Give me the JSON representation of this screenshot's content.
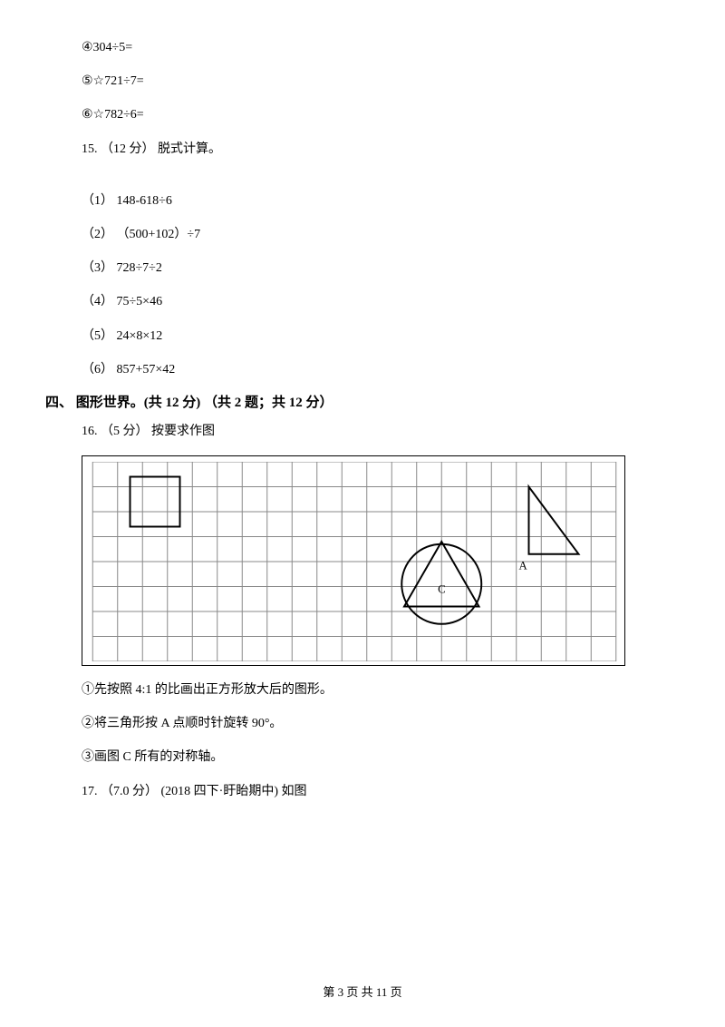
{
  "q14": {
    "items": [
      "④304÷5=",
      "⑤☆721÷7=",
      "⑥☆782÷6="
    ]
  },
  "q15": {
    "header": "15. （12 分） 脱式计算。",
    "items": [
      "（1） 148-618÷6",
      "（2） （500+102）÷7",
      "（3） 728÷7÷2",
      "（4） 75÷5×46",
      "（5） 24×8×12",
      "（6） 857+57×42"
    ]
  },
  "section4": {
    "title": "四、 图形世界。(共 12 分) （共 2 题；共 12 分）"
  },
  "q16": {
    "header": "16. （5 分） 按要求作图",
    "notes": [
      "①先按照 4:1 的比画出正方形放大后的图形。",
      "②将三角形按 A 点顺时针旋转 90°。",
      "③画图 C 所有的对称轴。"
    ]
  },
  "q17": {
    "header": "17. （7.0 分） (2018 四下·盱眙期中) 如图"
  },
  "figure": {
    "grid": {
      "cols": 21,
      "rows": 8,
      "cell": 28,
      "stroke": "#888888",
      "stroke_width": 1
    },
    "square": {
      "x0_cells": 1.5,
      "y0_cells": 0.6,
      "size_cells": 2,
      "stroke": "#000000",
      "stroke_width": 2
    },
    "triangleA": {
      "ax_cells": 17.5,
      "ay_cells": 3.7,
      "bx_cells": 17.5,
      "by_cells": 1.0,
      "cx_cells": 19.5,
      "cy_cells": 3.7,
      "stroke": "#000000",
      "stroke_width": 2,
      "label": "A",
      "label_x_cells": 17.1,
      "label_y_cells": 4.3
    },
    "circleC": {
      "cx_cells": 14,
      "cy_cells": 4.9,
      "r_cells": 1.6,
      "stroke": "#000000",
      "stroke_width": 2,
      "label": "C",
      "label_x_cells": 13.85,
      "label_y_cells": 5.25
    },
    "triangleC": {
      "ax_cells": 12.5,
      "ay_cells": 5.8,
      "bx_cells": 15.5,
      "by_cells": 5.8,
      "cx_cells": 14.0,
      "cy_cells": 3.2,
      "stroke": "#000000",
      "stroke_width": 2
    },
    "label_font_size": 13
  },
  "footer": {
    "text_prefix": "第 ",
    "page": "3",
    "text_mid": " 页 共 ",
    "total": "11",
    "text_suffix": " 页"
  }
}
